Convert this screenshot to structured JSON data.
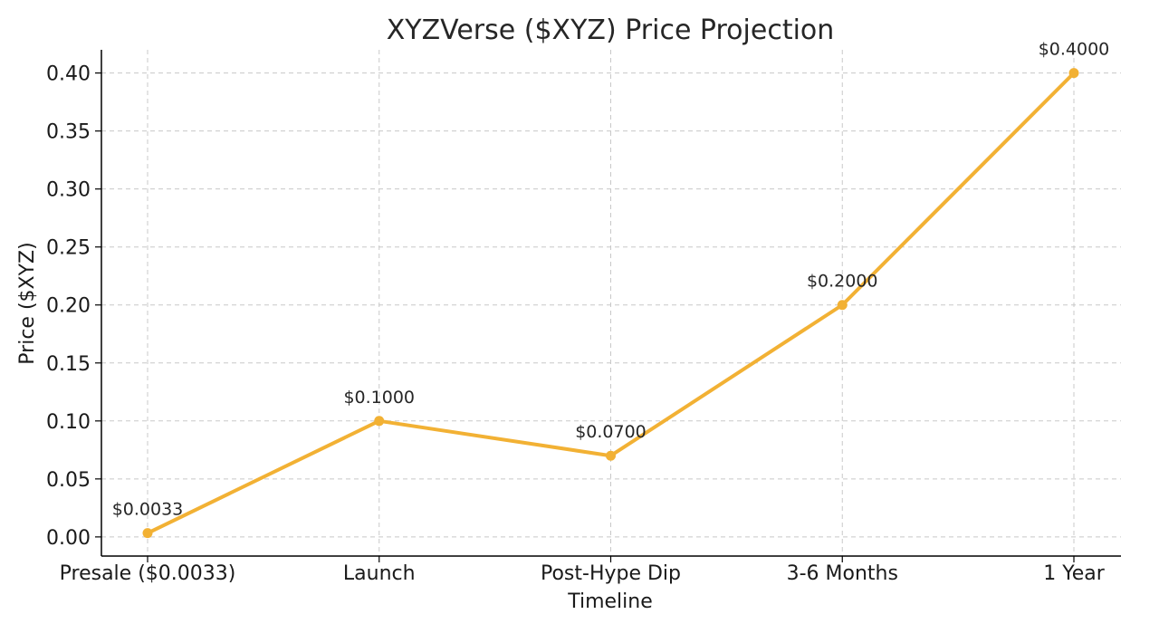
{
  "chart_data": {
    "type": "line",
    "title": "XYZVerse ($XYZ) Price Projection",
    "xlabel": "Timeline",
    "ylabel": "Price ($XYZ)",
    "categories": [
      "Presale ($0.0033)",
      "Launch",
      "Post-Hype Dip",
      "3-6 Months",
      "1 Year"
    ],
    "series": [
      {
        "values": [
          0.0033,
          0.1,
          0.07,
          0.2,
          0.4
        ],
        "color": "#f2b134",
        "marker": "circle"
      }
    ],
    "data_labels": [
      "$0.0033",
      "$0.1000",
      "$0.0700",
      "$0.2000",
      "$0.4000"
    ],
    "y_ticks": [
      "0.00",
      "0.05",
      "0.10",
      "0.15",
      "0.20",
      "0.25",
      "0.30",
      "0.35",
      "0.40"
    ],
    "ylim": [
      -0.0165,
      0.42
    ],
    "grid": true,
    "legend": "none"
  }
}
